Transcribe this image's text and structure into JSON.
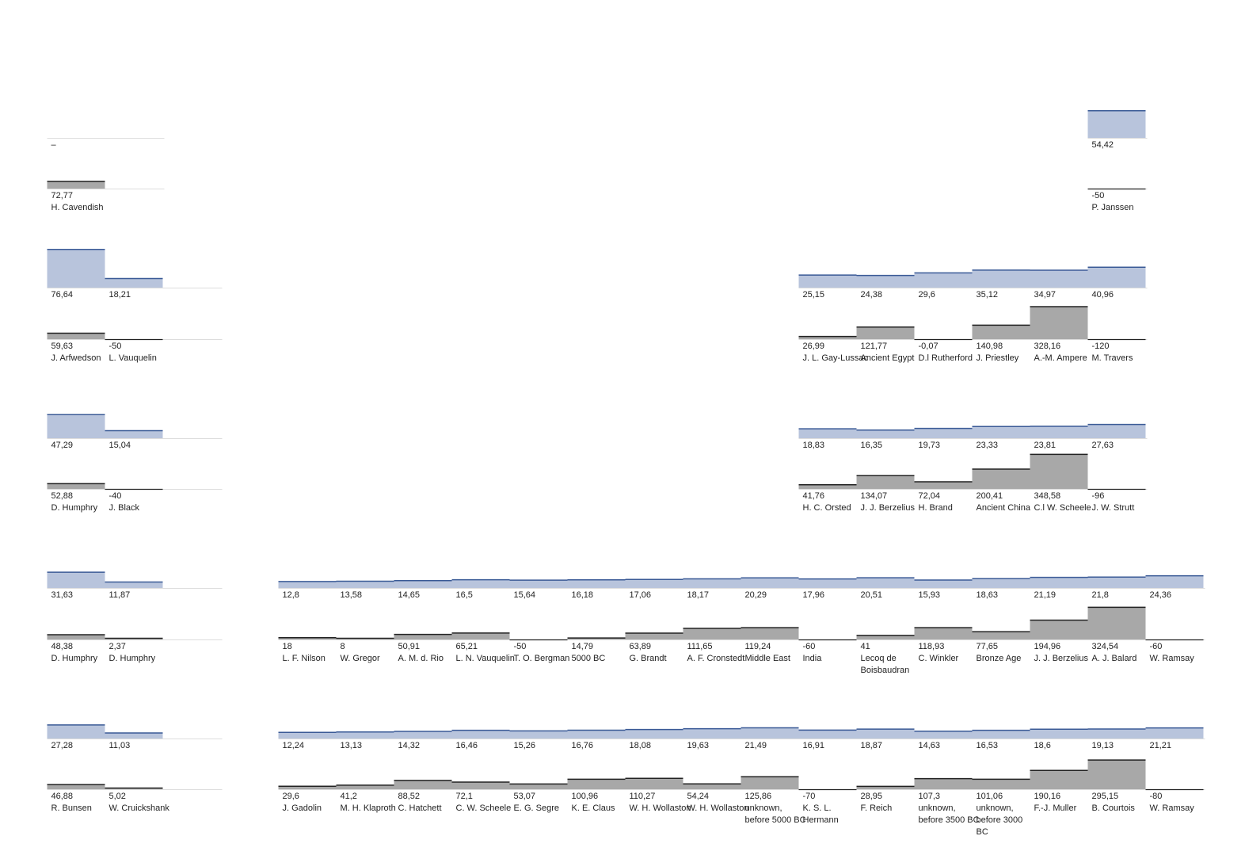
{
  "chart_data": {
    "type": "bar",
    "colors": {
      "top_fill": "#b8c4dc",
      "top_line": "#3a5a96",
      "bottom_fill": "#a8a8a8",
      "bottom_line": "#222222",
      "baseline": "#dddddd"
    },
    "rows": [
      {
        "row": 0,
        "cells": [
          {
            "col": 0,
            "top": null,
            "top_label": "–",
            "bottom": 72.77,
            "bottom_label": "72,77",
            "name": [
              "H. Cavendish"
            ]
          },
          {
            "col": 18,
            "top": 54.42,
            "top_label": "54,42",
            "bottom": -50,
            "bottom_label": "-50",
            "name": [
              "P. Janssen"
            ]
          }
        ]
      },
      {
        "row": 1,
        "cells": [
          {
            "col": 0,
            "top": 76.64,
            "top_label": "76,64",
            "bottom": 59.63,
            "bottom_label": "59,63",
            "name": [
              "J. Arfwedson"
            ]
          },
          {
            "col": 1,
            "top": 18.21,
            "top_label": "18,21",
            "bottom": -50,
            "bottom_label": "-50",
            "name": [
              "L. Vauquelin"
            ]
          },
          {
            "col": 13,
            "top": 25.15,
            "top_label": "25,15",
            "bottom": 26.99,
            "bottom_label": "26,99",
            "name": [
              "J. L. Gay-Lussac"
            ]
          },
          {
            "col": 14,
            "top": 24.38,
            "top_label": "24,38",
            "bottom": 121.77,
            "bottom_label": "121,77",
            "name": [
              "Ancient Egypt"
            ]
          },
          {
            "col": 15,
            "top": 29.6,
            "top_label": "29,6",
            "bottom": -0.07,
            "bottom_label": "-0,07",
            "name": [
              "D.l Rutherford"
            ]
          },
          {
            "col": 16,
            "top": 35.12,
            "top_label": "35,12",
            "bottom": 140.98,
            "bottom_label": "140,98",
            "name": [
              "J. Priestley"
            ]
          },
          {
            "col": 17,
            "top": 34.97,
            "top_label": "34,97",
            "bottom": 328.16,
            "bottom_label": "328,16",
            "name": [
              "A.-M. Ampere"
            ]
          },
          {
            "col": 18,
            "top": 40.96,
            "top_label": "40,96",
            "bottom": -120,
            "bottom_label": "-120",
            "name": [
              "M. Travers"
            ]
          }
        ]
      },
      {
        "row": 2,
        "cells": [
          {
            "col": 0,
            "top": 47.29,
            "top_label": "47,29",
            "bottom": 52.88,
            "bottom_label": "52,88",
            "name": [
              "D. Humphry"
            ]
          },
          {
            "col": 1,
            "top": 15.04,
            "top_label": "15,04",
            "bottom": -40,
            "bottom_label": "-40",
            "name": [
              "J. Black"
            ]
          },
          {
            "col": 13,
            "top": 18.83,
            "top_label": "18,83",
            "bottom": 41.76,
            "bottom_label": "41,76",
            "name": [
              "H. C. Orsted"
            ]
          },
          {
            "col": 14,
            "top": 16.35,
            "top_label": "16,35",
            "bottom": 134.07,
            "bottom_label": "134,07",
            "name": [
              "J. J. Berzelius"
            ]
          },
          {
            "col": 15,
            "top": 19.73,
            "top_label": "19,73",
            "bottom": 72.04,
            "bottom_label": "72,04",
            "name": [
              "H. Brand"
            ]
          },
          {
            "col": 16,
            "top": 23.33,
            "top_label": "23,33",
            "bottom": 200.41,
            "bottom_label": "200,41",
            "name": [
              "Ancient China"
            ]
          },
          {
            "col": 17,
            "top": 23.81,
            "top_label": "23,81",
            "bottom": 348.58,
            "bottom_label": "348,58",
            "name": [
              "C.l W. Scheele"
            ]
          },
          {
            "col": 18,
            "top": 27.63,
            "top_label": "27,63",
            "bottom": -96,
            "bottom_label": "-96",
            "name": [
              "J. W. Strutt"
            ]
          }
        ]
      },
      {
        "row": 3,
        "cells": [
          {
            "col": 0,
            "top": 31.63,
            "top_label": "31,63",
            "bottom": 48.38,
            "bottom_label": "48,38",
            "name": [
              "D. Humphry"
            ]
          },
          {
            "col": 1,
            "top": 11.87,
            "top_label": "11,87",
            "bottom": 2.37,
            "bottom_label": "2,37",
            "name": [
              "D. Humphry"
            ]
          },
          {
            "col": 4,
            "top": 12.8,
            "top_label": "12,8",
            "bottom": 18,
            "bottom_label": "18",
            "name": [
              "L. F. Nilson"
            ]
          },
          {
            "col": 5,
            "top": 13.58,
            "top_label": "13,58",
            "bottom": 8,
            "bottom_label": "8",
            "name": [
              "W. Gregor"
            ]
          },
          {
            "col": 6,
            "top": 14.65,
            "top_label": "14,65",
            "bottom": 50.91,
            "bottom_label": "50,91",
            "name": [
              "A. M. d. Rio"
            ]
          },
          {
            "col": 7,
            "top": 16.5,
            "top_label": "16,5",
            "bottom": 65.21,
            "bottom_label": "65,21",
            "name": [
              "L. N. Vauquelin"
            ]
          },
          {
            "col": 8,
            "top": 15.64,
            "top_label": "15,64",
            "bottom": -50,
            "bottom_label": "-50",
            "name": [
              "T. O. Bergman"
            ]
          },
          {
            "col": 9,
            "top": 16.18,
            "top_label": "16,18",
            "bottom": 14.79,
            "bottom_label": "14,79",
            "name": [
              "5000 BC"
            ]
          },
          {
            "col": 10,
            "top": 17.06,
            "top_label": "17,06",
            "bottom": 63.89,
            "bottom_label": "63,89",
            "name": [
              "G. Brandt"
            ]
          },
          {
            "col": 11,
            "top": 18.17,
            "top_label": "18,17",
            "bottom": 111.65,
            "bottom_label": "111,65",
            "name": [
              "A. F. Cronstedt"
            ]
          },
          {
            "col": 12,
            "top": 20.29,
            "top_label": "20,29",
            "bottom": 119.24,
            "bottom_label": "119,24",
            "name": [
              "Middle East"
            ]
          },
          {
            "col": 13,
            "top": 17.96,
            "top_label": "17,96",
            "bottom": -60,
            "bottom_label": "-60",
            "name": [
              "India"
            ]
          },
          {
            "col": 14,
            "top": 20.51,
            "top_label": "20,51",
            "bottom": 41,
            "bottom_label": "41",
            "name": [
              "Lecoq de",
              "Boisbaudran"
            ]
          },
          {
            "col": 15,
            "top": 15.93,
            "top_label": "15,93",
            "bottom": 118.93,
            "bottom_label": "118,93",
            "name": [
              "C. Winkler"
            ]
          },
          {
            "col": 16,
            "top": 18.63,
            "top_label": "18,63",
            "bottom": 77.65,
            "bottom_label": "77,65",
            "name": [
              "Bronze Age"
            ]
          },
          {
            "col": 17,
            "top": 21.19,
            "top_label": "21,19",
            "bottom": 194.96,
            "bottom_label": "194,96",
            "name": [
              "J. J. Berzelius"
            ]
          },
          {
            "col": 18,
            "top": 21.8,
            "top_label": "21,8",
            "bottom": 324.54,
            "bottom_label": "324,54",
            "name": [
              "A. J. Balard"
            ]
          },
          {
            "col": 19,
            "top": 24.36,
            "top_label": "24,36",
            "bottom": -60,
            "bottom_label": "-60",
            "name": [
              "W. Ramsay"
            ]
          }
        ]
      },
      {
        "row": 4,
        "cells": [
          {
            "col": 0,
            "top": 27.28,
            "top_label": "27,28",
            "bottom": 46.88,
            "bottom_label": "46,88",
            "name": [
              "R. Bunsen"
            ]
          },
          {
            "col": 1,
            "top": 11.03,
            "top_label": "11,03",
            "bottom": 5.02,
            "bottom_label": "5,02",
            "name": [
              "W. Cruickshank"
            ]
          },
          {
            "col": 4,
            "top": 12.24,
            "top_label": "12,24",
            "bottom": 29.6,
            "bottom_label": "29,6",
            "name": [
              "J. Gadolin"
            ]
          },
          {
            "col": 5,
            "top": 13.13,
            "top_label": "13,13",
            "bottom": 41.2,
            "bottom_label": "41,2",
            "name": [
              "M. H. Klaproth"
            ]
          },
          {
            "col": 6,
            "top": 14.32,
            "top_label": "14,32",
            "bottom": 88.52,
            "bottom_label": "88,52",
            "name": [
              "C. Hatchett"
            ]
          },
          {
            "col": 7,
            "top": 16.46,
            "top_label": "16,46",
            "bottom": 72.1,
            "bottom_label": "72,1",
            "name": [
              "C. W. Scheele"
            ]
          },
          {
            "col": 8,
            "top": 15.26,
            "top_label": "15,26",
            "bottom": 53.07,
            "bottom_label": "53,07",
            "name": [
              "E. G. Segre"
            ]
          },
          {
            "col": 9,
            "top": 16.76,
            "top_label": "16,76",
            "bottom": 100.96,
            "bottom_label": "100,96",
            "name": [
              "K. E. Claus"
            ]
          },
          {
            "col": 10,
            "top": 18.08,
            "top_label": "18,08",
            "bottom": 110.27,
            "bottom_label": "110,27",
            "name": [
              "W. H. Wollaston"
            ]
          },
          {
            "col": 11,
            "top": 19.63,
            "top_label": "19,63",
            "bottom": 54.24,
            "bottom_label": "54,24",
            "name": [
              "W. H. Wollaston"
            ]
          },
          {
            "col": 12,
            "top": 21.49,
            "top_label": "21,49",
            "bottom": 125.86,
            "bottom_label": "125,86",
            "name": [
              "unknown,",
              "before 5000 BC"
            ]
          },
          {
            "col": 13,
            "top": 16.91,
            "top_label": "16,91",
            "bottom": -70,
            "bottom_label": "-70",
            "name": [
              "K. S. L.",
              "Hermann"
            ]
          },
          {
            "col": 14,
            "top": 18.87,
            "top_label": "18,87",
            "bottom": 28.95,
            "bottom_label": "28,95",
            "name": [
              "F. Reich"
            ]
          },
          {
            "col": 15,
            "top": 14.63,
            "top_label": "14,63",
            "bottom": 107.3,
            "bottom_label": "107,3",
            "name": [
              "unknown,",
              "before 3500 BC"
            ]
          },
          {
            "col": 16,
            "top": 16.53,
            "top_label": "16,53",
            "bottom": 101.06,
            "bottom_label": "101,06",
            "name": [
              "unknown,",
              "before 3000",
              "BC"
            ]
          },
          {
            "col": 17,
            "top": 18.6,
            "top_label": "18,6",
            "bottom": 190.16,
            "bottom_label": "190,16",
            "name": [
              "F.-J. Muller"
            ]
          },
          {
            "col": 18,
            "top": 19.13,
            "top_label": "19,13",
            "bottom": 295.15,
            "bottom_label": "295,15",
            "name": [
              "B. Courtois"
            ]
          },
          {
            "col": 19,
            "top": 21.21,
            "top_label": "21,21",
            "bottom": -80,
            "bottom_label": "-80",
            "name": [
              "W. Ramsay"
            ]
          }
        ]
      }
    ]
  }
}
